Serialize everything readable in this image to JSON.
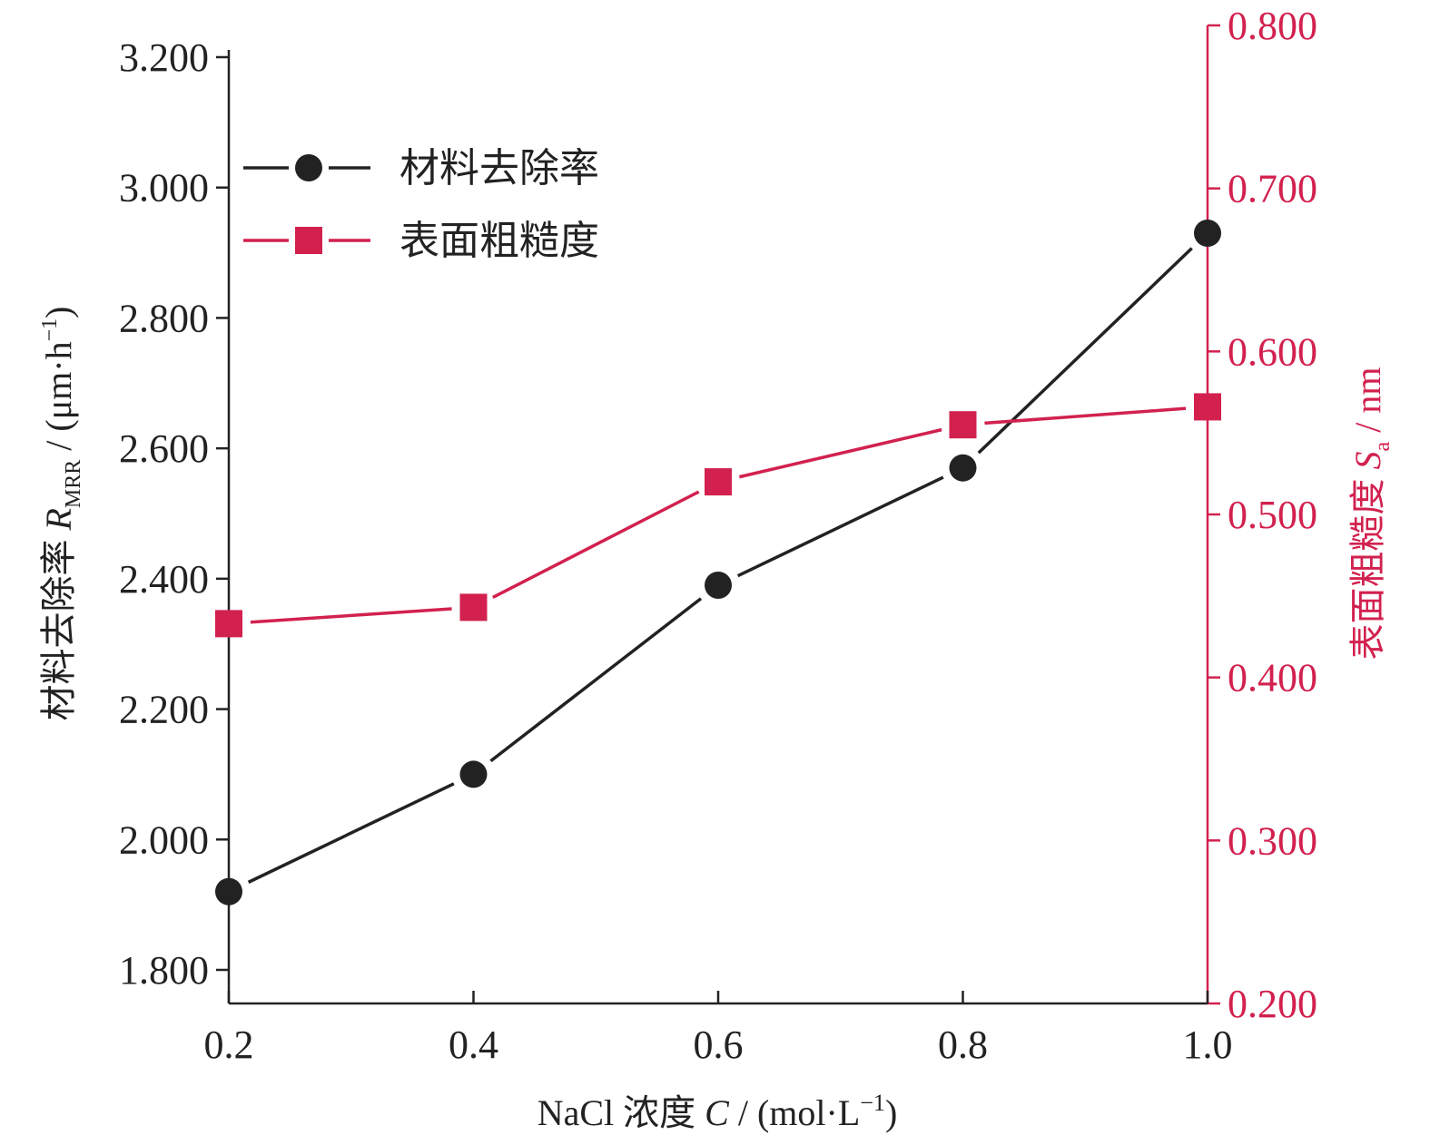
{
  "chart_data": {
    "type": "line",
    "x": [
      0.2,
      0.4,
      0.6,
      0.8,
      1.0
    ],
    "x_tick_labels": [
      "0.2",
      "0.4",
      "0.6",
      "0.8",
      "1.0"
    ],
    "xlim": [
      0.2,
      1.0
    ],
    "xlabel": {
      "prefix": "NaCl 浓度 ",
      "symbol": "C",
      "suffix": " / (mol·L",
      "sup": "−1",
      "close": ")"
    },
    "y_left": {
      "ylim": [
        1.8,
        3.2
      ],
      "ticks": [
        1.8,
        2.0,
        2.2,
        2.4,
        2.6,
        2.8,
        3.0,
        3.2
      ],
      "tick_labels": [
        "1.800",
        "2.000",
        "2.200",
        "2.400",
        "2.600",
        "2.800",
        "3.000",
        "3.200"
      ],
      "label": {
        "prefix": "材料去除率 ",
        "symbol": "R",
        "sub": "MRR",
        "suffix": " / (μm·h",
        "sup": "−1",
        "close": ")"
      },
      "color": "#222222"
    },
    "y_right": {
      "ylim": [
        0.2,
        0.8
      ],
      "ticks": [
        0.2,
        0.3,
        0.4,
        0.5,
        0.6,
        0.7,
        0.8
      ],
      "tick_labels": [
        "0.200",
        "0.300",
        "0.400",
        "0.500",
        "0.600",
        "0.700",
        "0.800"
      ],
      "label": {
        "prefix": "表面粗糙度 ",
        "symbol": "S",
        "sub": "a",
        "suffix": " / nm"
      },
      "color": "#d2214f"
    },
    "series": [
      {
        "name": "材料去除率",
        "axis": "left",
        "marker": "circle",
        "color": "#222222",
        "values": [
          1.92,
          2.1,
          2.39,
          2.57,
          2.93
        ]
      },
      {
        "name": "表面粗糙度",
        "axis": "right",
        "marker": "square",
        "color": "#d2214f",
        "values": [
          0.433,
          0.443,
          0.52,
          0.555,
          0.566
        ]
      }
    ],
    "legend_position": "top-left",
    "grid": false
  }
}
